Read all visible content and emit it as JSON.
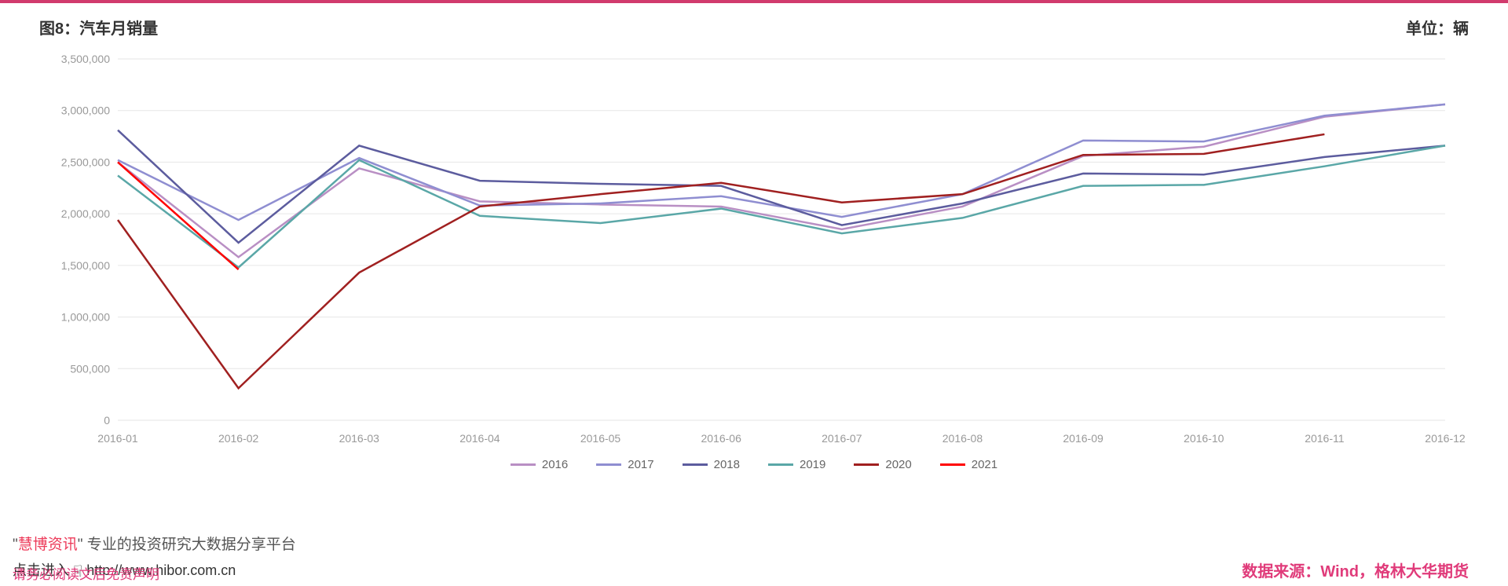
{
  "header": {
    "title": "图8：汽车月销量",
    "unit": "单位：辆"
  },
  "chart": {
    "type": "line",
    "background_color": "#ffffff",
    "grid_color": "#e6e6e6",
    "axis_text_color": "#999999",
    "axis_fontsize": 14,
    "line_width": 2.5,
    "ylim": [
      0,
      3500000
    ],
    "ytick_step": 500000,
    "y_ticks": [
      0,
      500000,
      1000000,
      1500000,
      2000000,
      2500000,
      3000000,
      3500000
    ],
    "y_tick_labels": [
      "0",
      "500,000",
      "1,000,000",
      "1,500,000",
      "2,000,000",
      "2,500,000",
      "3,000,000",
      "3,500,000"
    ],
    "categories": [
      "2016-01",
      "2016-02",
      "2016-03",
      "2016-04",
      "2016-05",
      "2016-06",
      "2016-07",
      "2016-08",
      "2016-09",
      "2016-10",
      "2016-11",
      "2016-12"
    ],
    "series": [
      {
        "name": "2016",
        "color": "#b98fc4",
        "values": [
          2500000,
          1580000,
          2440000,
          2120000,
          2090000,
          2070000,
          1850000,
          2070000,
          2560000,
          2650000,
          2940000,
          3060000
        ]
      },
      {
        "name": "2017",
        "color": "#8f8ed1",
        "values": [
          2520000,
          1940000,
          2540000,
          2080000,
          2100000,
          2170000,
          1970000,
          2190000,
          2710000,
          2700000,
          2950000,
          3060000
        ]
      },
      {
        "name": "2018",
        "color": "#5c5c9e",
        "values": [
          2810000,
          1720000,
          2660000,
          2320000,
          2290000,
          2270000,
          1890000,
          2100000,
          2390000,
          2380000,
          2550000,
          2660000
        ]
      },
      {
        "name": "2019",
        "color": "#5aa7a7",
        "values": [
          2370000,
          1480000,
          2520000,
          1980000,
          1910000,
          2050000,
          1810000,
          1960000,
          2270000,
          2280000,
          2460000,
          2660000
        ]
      },
      {
        "name": "2020",
        "color": "#a02020",
        "values": [
          1940000,
          310000,
          1430000,
          2070000,
          2190000,
          2300000,
          2110000,
          2190000,
          2570000,
          2580000,
          2770000,
          null
        ]
      },
      {
        "name": "2021",
        "color": "#ff0000",
        "values": [
          2500000,
          1460000,
          null,
          null,
          null,
          null,
          null,
          null,
          null,
          null,
          null,
          null
        ]
      }
    ],
    "legend_fontsize": 15,
    "legend_color": "#666666"
  },
  "footer": {
    "brand": "慧博资讯",
    "brand_quote_open": "\"",
    "brand_quote_close": "\"",
    "brand_tagline": " 专业的投资研究大数据分享平台",
    "link_prefix": "点击进入 ",
    "link_url": "http://www.hibor.com.cn",
    "disclaimer": "请务必阅读文后免责声明",
    "source": "数据来源：Wind，格林大华期货"
  },
  "colors": {
    "top_bar": "#d13b6d",
    "title_text": "#333333"
  }
}
